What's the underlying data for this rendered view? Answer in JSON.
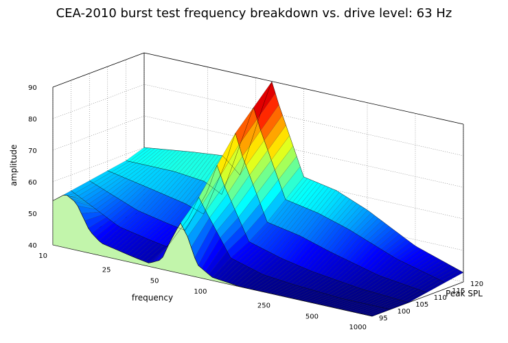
{
  "chart_data": {
    "type": "surface3d",
    "title": "CEA-2010 burst test frequency breakdown vs. drive level: 63 Hz",
    "xlabel": "frequency",
    "ylabel": "Peak SPL",
    "zlabel": "amplitude",
    "x_scale": "log",
    "x_ticks": [
      "10",
      "25",
      "50",
      "100",
      "250",
      "500",
      "1000"
    ],
    "x_tick_values": [
      10,
      25,
      50,
      100,
      250,
      500,
      1000
    ],
    "xlim": [
      10,
      1000
    ],
    "y_ticks": [
      "95",
      "100",
      "105",
      "110",
      "115",
      "120"
    ],
    "y_tick_values": [
      95,
      100,
      105,
      110,
      115,
      120
    ],
    "ylim": [
      95,
      120
    ],
    "z_ticks": [
      "40",
      "50",
      "60",
      "70",
      "80",
      "90"
    ],
    "z_tick_values": [
      40,
      50,
      60,
      70,
      80,
      90
    ],
    "zlim": [
      40,
      90
    ],
    "grid": true,
    "colormap": "jet",
    "front_face_color": "#c2f5ab",
    "fundamental_hz": 63,
    "fundamental_peak": {
      "spl": 120,
      "amplitude": 90
    },
    "series": [
      {
        "peak_spl": 95,
        "values": [
          [
            10,
            54
          ],
          [
            12,
            57
          ],
          [
            14,
            55
          ],
          [
            17,
            47
          ],
          [
            20,
            44
          ],
          [
            25,
            43
          ],
          [
            31,
            42
          ],
          [
            40,
            41
          ],
          [
            48,
            43
          ],
          [
            55,
            50
          ],
          [
            63,
            56
          ],
          [
            70,
            52
          ],
          [
            80,
            44
          ],
          [
            100,
            41
          ],
          [
            150,
            40
          ],
          [
            250,
            40
          ],
          [
            500,
            40
          ],
          [
            1000,
            40
          ]
        ]
      },
      {
        "peak_spl": 100,
        "values": [
          [
            10,
            55
          ],
          [
            20,
            47
          ],
          [
            31,
            45
          ],
          [
            40,
            44
          ],
          [
            55,
            55
          ],
          [
            63,
            62
          ],
          [
            70,
            58
          ],
          [
            100,
            45
          ],
          [
            160,
            42
          ],
          [
            250,
            41
          ],
          [
            500,
            40
          ],
          [
            1000,
            40
          ]
        ]
      },
      {
        "peak_spl": 105,
        "values": [
          [
            10,
            56
          ],
          [
            20,
            50
          ],
          [
            31,
            48
          ],
          [
            40,
            47
          ],
          [
            55,
            61
          ],
          [
            63,
            70
          ],
          [
            70,
            64
          ],
          [
            100,
            48
          ],
          [
            160,
            45
          ],
          [
            250,
            43
          ],
          [
            500,
            41
          ],
          [
            1000,
            40
          ]
        ]
      },
      {
        "peak_spl": 110,
        "values": [
          [
            10,
            57
          ],
          [
            20,
            54
          ],
          [
            31,
            52
          ],
          [
            40,
            50
          ],
          [
            55,
            68
          ],
          [
            63,
            78
          ],
          [
            70,
            71
          ],
          [
            100,
            52
          ],
          [
            160,
            50
          ],
          [
            250,
            47
          ],
          [
            500,
            43
          ],
          [
            1000,
            41
          ]
        ]
      },
      {
        "peak_spl": 115,
        "values": [
          [
            10,
            58
          ],
          [
            20,
            58
          ],
          [
            31,
            57
          ],
          [
            40,
            54
          ],
          [
            55,
            75
          ],
          [
            63,
            84
          ],
          [
            70,
            77
          ],
          [
            100,
            57
          ],
          [
            160,
            55
          ],
          [
            250,
            52
          ],
          [
            500,
            46
          ],
          [
            1000,
            42
          ]
        ]
      },
      {
        "peak_spl": 120,
        "values": [
          [
            10,
            60
          ],
          [
            20,
            62
          ],
          [
            31,
            63
          ],
          [
            40,
            58
          ],
          [
            55,
            81
          ],
          [
            63,
            90
          ],
          [
            70,
            83
          ],
          [
            100,
            62
          ],
          [
            160,
            60
          ],
          [
            250,
            56
          ],
          [
            500,
            48
          ],
          [
            1000,
            43
          ]
        ]
      }
    ]
  }
}
